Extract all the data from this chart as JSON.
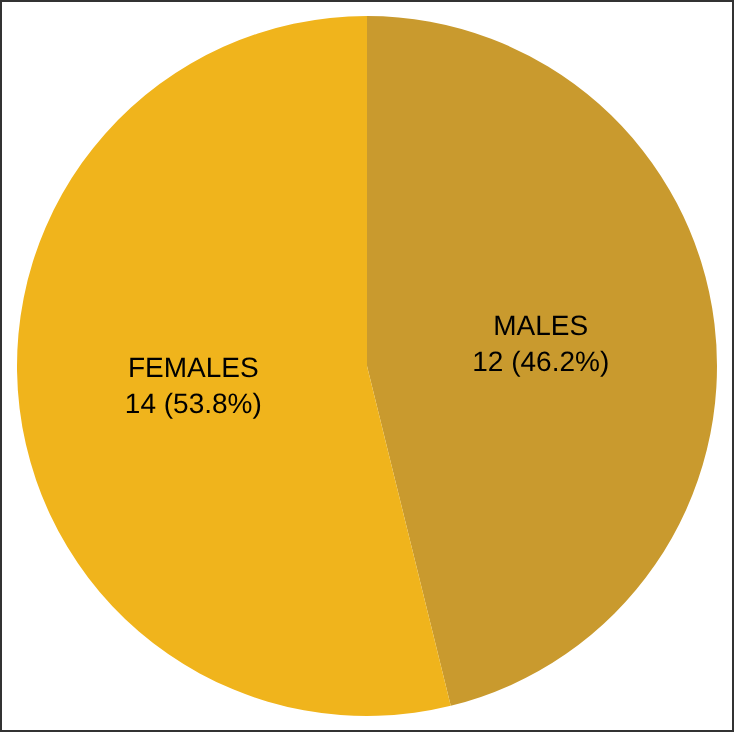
{
  "chart_data": {
    "type": "pie",
    "categories": [
      "MALES",
      "FEMALES"
    ],
    "values": [
      12,
      14
    ],
    "colors": [
      "#c99a2e",
      "#f0b41c"
    ],
    "value_labels": [
      "12 (46.2%)",
      "14 (53.8%)"
    ]
  }
}
